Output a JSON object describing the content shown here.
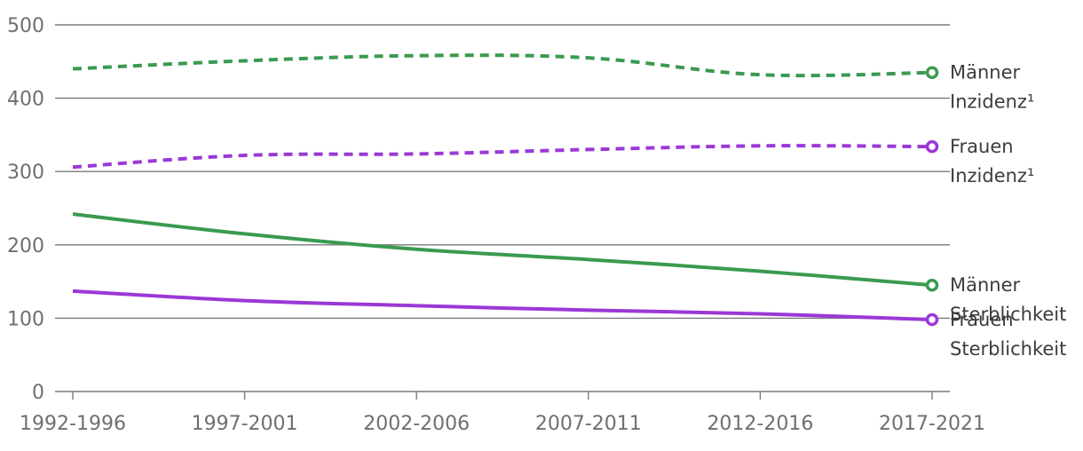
{
  "chart_data": {
    "type": "line",
    "title": "",
    "xlabel": "",
    "ylabel": "",
    "categories": [
      "1992-1996",
      "1997-2001",
      "2002-2006",
      "2007-2011",
      "2012-2016",
      "2017-2021"
    ],
    "ylim": [
      0,
      500
    ],
    "yticks": [
      0,
      100,
      200,
      300,
      400,
      500
    ],
    "grid": true,
    "series": [
      {
        "label_lines": [
          "Männer",
          "Inzidenz¹"
        ],
        "color": "#3a9a4f",
        "dashed": true,
        "values": [
          440,
          451,
          458,
          455,
          432,
          435
        ]
      },
      {
        "label_lines": [
          "Frauen",
          "Inzidenz¹"
        ],
        "color": "#9b38d6",
        "dashed": true,
        "values": [
          306,
          322,
          324,
          330,
          335,
          334
        ]
      },
      {
        "label_lines": [
          "Männer",
          "Sterblichkeit"
        ],
        "color": "#3a9a4f",
        "dashed": false,
        "values": [
          242,
          215,
          194,
          180,
          164,
          145
        ]
      },
      {
        "label_lines": [
          "Frauen",
          "Sterblichkeit"
        ],
        "color": "#9b38d6",
        "dashed": false,
        "values": [
          137,
          124,
          117,
          111,
          106,
          98
        ]
      }
    ]
  }
}
